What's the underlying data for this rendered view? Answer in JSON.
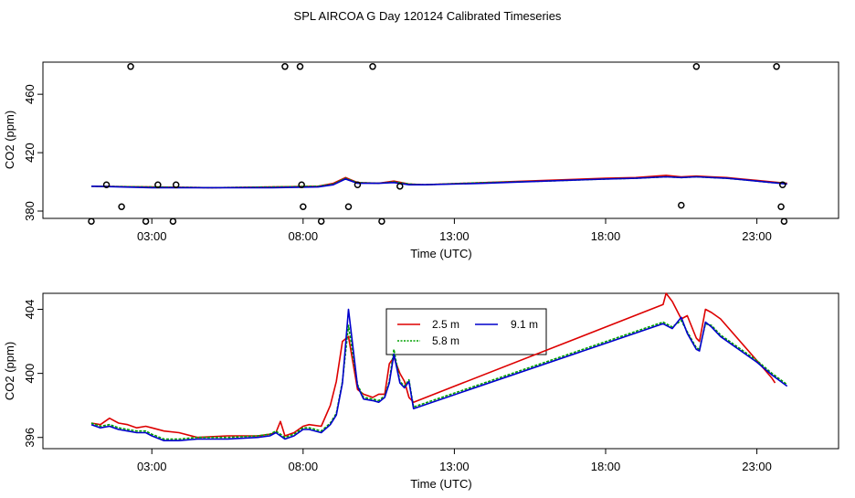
{
  "figure_title": "SPL AIRCOA G  Day 120124  Calibrated Timeseries",
  "colors": {
    "s25": "#dd0000",
    "s58": "#00a000",
    "s91": "#0000cc",
    "axis": "#000000"
  },
  "chart_data": [
    {
      "type": "line",
      "title": "",
      "xlabel": "Time (UTC)",
      "ylabel": "CO2 (ppm)",
      "xlim": [
        -0.6,
        25.7
      ],
      "ylim": [
        375,
        482
      ],
      "xticks": [
        3,
        8,
        13,
        18,
        23
      ],
      "xtick_labels": [
        "03:00",
        "08:00",
        "13:00",
        "18:00",
        "23:00"
      ],
      "yticks": [
        380,
        420,
        460
      ],
      "ytick_labels": [
        "380",
        "420",
        "460"
      ],
      "series": [
        {
          "name": "2.5 m",
          "color_key": "s25",
          "x": [
            1.0,
            3.0,
            5.0,
            7.0,
            8.5,
            9.0,
            9.4,
            9.8,
            10.5,
            11.0,
            11.5,
            12.0,
            14.0,
            16.0,
            18.0,
            19.0,
            20.0,
            20.5,
            21.0,
            21.5,
            22.0,
            22.5,
            23.0,
            23.5,
            24.0
          ],
          "y": [
            397,
            396.5,
            396,
            396.5,
            397,
            399,
            403,
            399.5,
            399,
            400.5,
            398.5,
            398,
            399.5,
            401,
            402.5,
            403,
            404.5,
            403.5,
            404,
            403.5,
            403,
            402,
            401,
            400,
            399
          ]
        },
        {
          "name": "5.8 m",
          "color_key": "s58",
          "x": [
            1.0,
            3.0,
            5.0,
            7.0,
            8.5,
            9.0,
            9.4,
            9.8,
            10.5,
            11.0,
            11.5,
            12.0,
            14.0,
            16.0,
            18.0,
            19.0,
            20.0,
            20.5,
            21.0,
            21.5,
            22.0,
            22.5,
            23.0,
            23.5,
            24.0
          ],
          "y": [
            397,
            396.5,
            396,
            396.5,
            397,
            398.5,
            402.5,
            399.5,
            399,
            400,
            398.5,
            398,
            399.5,
            400.5,
            402,
            402.5,
            403.5,
            403,
            403.5,
            403,
            402.5,
            401.5,
            400.5,
            399.5,
            399
          ]
        },
        {
          "name": "9.1 m",
          "color_key": "s91",
          "x": [
            1.0,
            3.0,
            5.0,
            7.0,
            8.5,
            9.0,
            9.4,
            9.8,
            10.5,
            11.0,
            11.5,
            12.0,
            14.0,
            16.0,
            18.0,
            19.0,
            20.0,
            20.5,
            21.0,
            21.5,
            22.0,
            22.5,
            23.0,
            23.5,
            24.0
          ],
          "y": [
            397,
            396,
            396,
            396,
            396.5,
            398,
            402,
            399,
            399,
            399.5,
            398,
            398,
            399,
            400.5,
            402,
            402.5,
            403.5,
            403,
            403.5,
            403,
            402.5,
            401.5,
            400.5,
            399.5,
            398.5
          ]
        }
      ],
      "points": {
        "name": "calibration",
        "x": [
          1.0,
          1.5,
          2.0,
          2.3,
          2.8,
          3.2,
          3.7,
          3.8,
          7.4,
          7.9,
          7.95,
          8.0,
          8.6,
          9.5,
          9.8,
          10.3,
          10.6,
          11.2,
          20.5,
          21.0,
          23.65,
          23.8,
          23.85,
          23.9
        ],
        "y": [
          373,
          398,
          383,
          479,
          373,
          398,
          373,
          398,
          479,
          479,
          398,
          383,
          373,
          383,
          398,
          479,
          373,
          397,
          384,
          479,
          479,
          383,
          398,
          373
        ]
      }
    },
    {
      "type": "line",
      "title": "",
      "xlabel": "Time (UTC)",
      "ylabel": "CO2 (ppm)",
      "xlim": [
        -0.6,
        25.7
      ],
      "ylim": [
        395.3,
        405.0
      ],
      "xticks": [
        3,
        8,
        13,
        18,
        23
      ],
      "xtick_labels": [
        "03:00",
        "08:00",
        "13:00",
        "18:00",
        "23:00"
      ],
      "yticks": [
        396,
        400,
        404
      ],
      "ytick_labels": [
        "396",
        "400",
        "404"
      ],
      "legend": {
        "position": "top-center",
        "entries": [
          "2.5 m",
          "9.1 m",
          "5.8 m"
        ]
      },
      "series": [
        {
          "name": "2.5 m",
          "color_key": "s25",
          "x": [
            1.0,
            1.3,
            1.6,
            1.9,
            2.2,
            2.5,
            2.8,
            3.0,
            3.4,
            3.9,
            4.5,
            5.5,
            6.5,
            6.9,
            7.1,
            7.25,
            7.4,
            7.7,
            8.0,
            8.2,
            8.6,
            8.9,
            9.1,
            9.3,
            9.5,
            9.8,
            10.0,
            10.3,
            10.5,
            10.7,
            10.85,
            11.0,
            11.2,
            11.35,
            11.5,
            11.65,
            19.9,
            20.0,
            20.2,
            20.5,
            20.7,
            21.0,
            21.1,
            21.3,
            21.5,
            21.8,
            23.0,
            23.5,
            23.6
          ],
          "y": [
            396.9,
            396.8,
            397.2,
            396.9,
            396.8,
            396.6,
            396.7,
            396.6,
            396.4,
            396.3,
            396.0,
            396.1,
            396.1,
            396.2,
            396.3,
            397.0,
            396.1,
            396.3,
            396.7,
            396.8,
            396.7,
            398.0,
            399.5,
            402.0,
            402.3,
            399.0,
            398.7,
            398.5,
            398.7,
            398.7,
            400.6,
            401.0,
            400.0,
            399.5,
            398.5,
            398.2,
            404.3,
            405.0,
            404.5,
            403.4,
            403.6,
            402.2,
            402.0,
            404.0,
            403.8,
            403.4,
            400.8,
            399.7,
            399.4
          ]
        },
        {
          "name": "5.8 m",
          "color_key": "s58",
          "x": [
            1.0,
            1.3,
            1.6,
            1.9,
            2.2,
            2.5,
            2.8,
            3.0,
            3.4,
            3.9,
            4.5,
            5.5,
            6.5,
            6.9,
            7.1,
            7.25,
            7.4,
            7.7,
            8.0,
            8.2,
            8.6,
            8.9,
            9.1,
            9.3,
            9.5,
            9.8,
            10.0,
            10.3,
            10.5,
            10.7,
            10.85,
            11.0,
            11.2,
            11.35,
            11.5,
            11.65,
            19.9,
            20.0,
            20.2,
            20.5,
            20.7,
            21.0,
            21.1,
            21.3,
            21.5,
            21.8,
            23.0,
            23.5,
            24.0
          ],
          "y": [
            396.9,
            396.7,
            396.8,
            396.6,
            396.5,
            396.4,
            396.4,
            396.2,
            395.9,
            395.9,
            396.0,
            396.0,
            396.1,
            396.2,
            396.4,
            396.2,
            396.0,
            396.2,
            396.6,
            396.6,
            396.4,
            396.9,
            397.5,
            399.5,
            403.0,
            399.3,
            398.5,
            398.4,
            398.3,
            398.6,
            399.5,
            401.5,
            399.5,
            399.2,
            399.6,
            397.9,
            403.2,
            403.1,
            402.9,
            403.3,
            402.6,
            401.6,
            401.5,
            403.1,
            403.0,
            402.4,
            400.8,
            400.0,
            399.3
          ]
        },
        {
          "name": "9.1 m",
          "color_key": "s91",
          "x": [
            1.0,
            1.3,
            1.6,
            1.9,
            2.2,
            2.5,
            2.8,
            3.0,
            3.4,
            3.9,
            4.5,
            5.5,
            6.5,
            6.9,
            7.1,
            7.25,
            7.4,
            7.7,
            8.0,
            8.2,
            8.6,
            8.9,
            9.1,
            9.3,
            9.5,
            9.8,
            10.0,
            10.3,
            10.5,
            10.7,
            10.85,
            11.0,
            11.2,
            11.35,
            11.5,
            11.65,
            19.9,
            20.0,
            20.2,
            20.5,
            20.7,
            21.0,
            21.1,
            21.3,
            21.5,
            21.8,
            23.0,
            23.5,
            24.0
          ],
          "y": [
            396.8,
            396.6,
            396.7,
            396.5,
            396.4,
            396.3,
            396.3,
            396.1,
            395.8,
            395.8,
            395.9,
            395.9,
            396.0,
            396.1,
            396.3,
            396.1,
            395.9,
            396.1,
            396.5,
            396.5,
            396.3,
            396.8,
            397.4,
            399.4,
            404.0,
            399.2,
            398.4,
            398.3,
            398.2,
            398.5,
            399.4,
            401.2,
            399.4,
            399.1,
            399.5,
            397.8,
            403.1,
            403.0,
            402.8,
            403.5,
            402.5,
            401.5,
            401.4,
            403.2,
            402.9,
            402.3,
            400.7,
            399.9,
            399.2
          ]
        }
      ]
    }
  ]
}
